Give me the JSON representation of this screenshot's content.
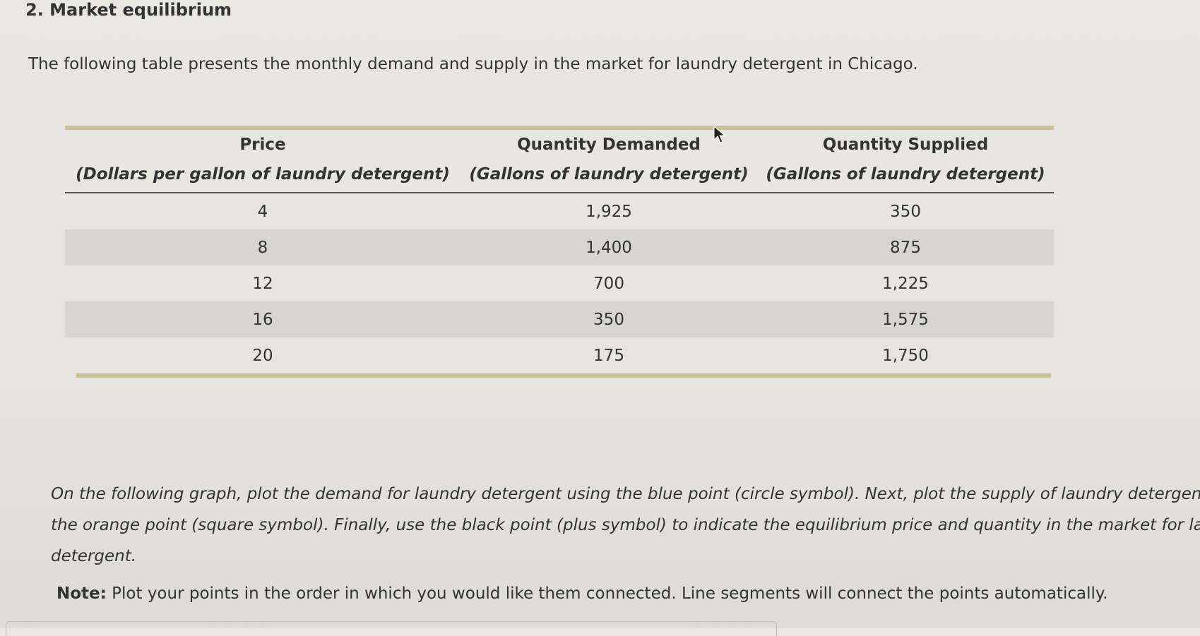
{
  "question": {
    "title": "2. Market equilibrium",
    "intro": "The following table presents the monthly demand and supply in the market for laundry detergent in Chicago."
  },
  "table": {
    "headers": [
      {
        "title": "Price",
        "subtitle": "(Dollars per gallon of laundry detergent)"
      },
      {
        "title": "Quantity Demanded",
        "subtitle": "(Gallons of laundry detergent)"
      },
      {
        "title": "Quantity Supplied",
        "subtitle": "(Gallons of laundry detergent)"
      }
    ],
    "rows": [
      {
        "price": "4",
        "qd": "1,925",
        "qs": "350"
      },
      {
        "price": "8",
        "qd": "1,400",
        "qs": "875"
      },
      {
        "price": "12",
        "qd": "700",
        "qs": "1,225"
      },
      {
        "price": "16",
        "qd": "350",
        "qs": "1,575"
      },
      {
        "price": "20",
        "qd": "175",
        "qs": "1,750"
      }
    ]
  },
  "instructions": {
    "line1": "On the following graph, plot the demand for laundry detergent using the blue point (circle symbol). Next, plot the supply of laundry detergent using",
    "line2": "the orange point (square symbol). Finally, use the black point (plus symbol) to indicate the equilibrium price and quantity in the market for laundry",
    "line3": "detergent."
  },
  "note": {
    "label": "Note:",
    "text": " Plot your points in the order in which you would like them connected. Line segments will connect the points automatically."
  },
  "colors": {
    "rule": "#c9c09a",
    "shaded_row": "#d6d5d1",
    "background": "#e7e5df"
  },
  "icons": {
    "cursor": "mouse-pointer-icon"
  }
}
